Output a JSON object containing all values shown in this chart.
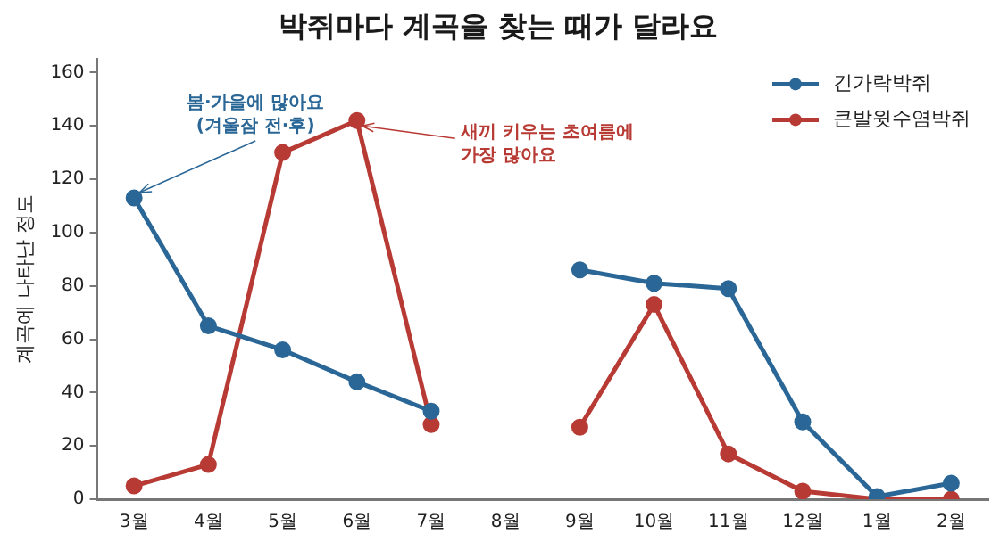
{
  "chart_data": {
    "type": "line",
    "title": "박쥐마다 계곡을 찾는 때가 달라요",
    "ylabel": "계곡에 나타난 정도",
    "categories": [
      "3월",
      "4월",
      "5월",
      "6월",
      "7월",
      "8월",
      "9월",
      "10월",
      "11월",
      "12월",
      "1월",
      "2월"
    ],
    "series": [
      {
        "name": "긴가락박쥐",
        "color": "#2a6797",
        "values": [
          113,
          65,
          56,
          44,
          33,
          null,
          86,
          81,
          79,
          29,
          1,
          6
        ]
      },
      {
        "name": "큰발윗수염박쥐",
        "color": "#b83a34",
        "values": [
          5,
          13,
          130,
          142,
          28,
          null,
          27,
          73,
          17,
          3,
          0,
          0
        ]
      }
    ],
    "ylim": [
      0,
      165
    ],
    "yticks": [
      0,
      20,
      40,
      60,
      80,
      100,
      120,
      140,
      160
    ],
    "grid": false,
    "legend": "top right",
    "marker": "circle",
    "line_style": "solid",
    "annotations": [
      {
        "text": "봄·가을에 많아요\n(겨울잠 전·후)",
        "x": "3월",
        "y": 113
      },
      {
        "text": "새끼 키우는 초여름에\n가장 많아요",
        "x": "6월",
        "y": 142
      }
    ]
  }
}
